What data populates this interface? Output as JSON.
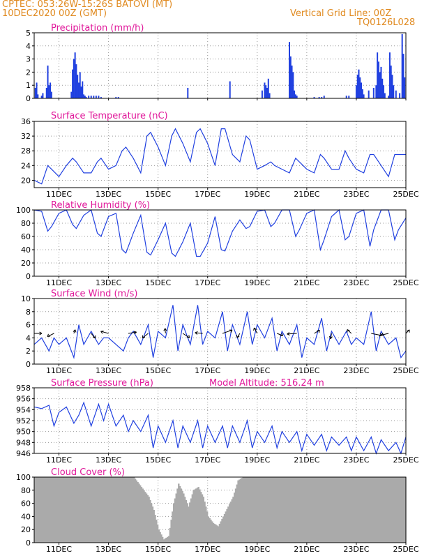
{
  "header": {
    "line1": "CPTEC:   053:26W-15:26S   BATOVI (MT)",
    "line2": "10DEC2020 00Z (GMT)",
    "grid_note": "Vertical Grid Line: 00Z",
    "code": "TQ0126L028",
    "model_altitude": "Model Altitude: 516.24 m"
  },
  "colors": {
    "header": "#e08a20",
    "title": "#e0189a",
    "series": "#2040e0",
    "cloud": "#aaaaaa",
    "wind_arrow": "#000000"
  },
  "x_axis": {
    "ticks": [
      "11DEC",
      "13DEC",
      "15DEC",
      "17DEC",
      "19DEC",
      "21DEC",
      "23DEC",
      "25DEC"
    ],
    "range_days": [
      0,
      15
    ],
    "tick_days": [
      1,
      3,
      5,
      7,
      9,
      11,
      13,
      15
    ]
  },
  "chart_data": [
    {
      "type": "bar",
      "title": "Precipitation (mm/h)",
      "ylim": [
        0,
        5
      ],
      "yticks": [
        0,
        1,
        2,
        3,
        4,
        5
      ],
      "x_unit": "days since 10DEC2020 00Z",
      "x": [
        0.05,
        0.1,
        0.15,
        0.3,
        0.35,
        0.5,
        0.55,
        0.6,
        0.65,
        0.7,
        1.5,
        1.55,
        1.6,
        1.65,
        1.7,
        1.75,
        1.8,
        1.85,
        1.9,
        1.95,
        2.0,
        2.05,
        2.1,
        2.2,
        2.3,
        2.4,
        2.5,
        2.6,
        2.7,
        3.3,
        3.4,
        6.2,
        7.9,
        9.2,
        9.3,
        9.35,
        9.4,
        9.45,
        9.5,
        10.3,
        10.35,
        10.4,
        10.45,
        10.5,
        10.55,
        10.6,
        11.3,
        11.5,
        11.6,
        11.7,
        12.6,
        12.7,
        13.0,
        13.05,
        13.1,
        13.15,
        13.2,
        13.25,
        13.3,
        13.5,
        13.7,
        13.8,
        13.85,
        13.9,
        13.95,
        14.0,
        14.05,
        14.1,
        14.15,
        14.3,
        14.35,
        14.4,
        14.45,
        14.5,
        14.6,
        14.75,
        14.85,
        14.9,
        14.95
      ],
      "values": [
        0.8,
        1.2,
        0.3,
        0.2,
        0.4,
        0.8,
        2.5,
        1.0,
        1.2,
        0.5,
        0.5,
        2.2,
        3.0,
        3.5,
        2.6,
        1.8,
        1.2,
        2.0,
        0.9,
        1.3,
        0.3,
        0.2,
        0.1,
        0.2,
        0.2,
        0.2,
        0.2,
        0.2,
        0.1,
        0.1,
        0.1,
        0.8,
        1.3,
        0.6,
        1.2,
        1.0,
        0.8,
        1.5,
        0.4,
        4.3,
        3.2,
        2.5,
        2.0,
        0.6,
        0.3,
        0.2,
        0.1,
        0.1,
        0.1,
        0.2,
        0.2,
        0.2,
        1.0,
        1.8,
        2.2,
        1.6,
        1.2,
        0.7,
        0.3,
        0.6,
        0.8,
        1.0,
        3.5,
        2.8,
        2.0,
        2.4,
        1.5,
        1.0,
        0.4,
        0.2,
        3.5,
        2.5,
        1.8,
        1.0,
        0.6,
        0.4,
        4.9,
        3.4,
        1.6
      ]
    },
    {
      "type": "line",
      "title": "Surface Temperature (nC)",
      "ylim": [
        18,
        36
      ],
      "yticks": [
        20,
        24,
        28,
        32,
        36
      ],
      "x_unit": "days since 10DEC2020 00Z",
      "x": [
        0,
        0.3,
        0.55,
        0.7,
        1.0,
        1.3,
        1.55,
        1.7,
        2.0,
        2.3,
        2.55,
        2.7,
        3.0,
        3.3,
        3.55,
        3.7,
        4.0,
        4.3,
        4.55,
        4.7,
        5.0,
        5.3,
        5.55,
        5.7,
        6.0,
        6.3,
        6.55,
        6.7,
        7.0,
        7.3,
        7.55,
        7.7,
        8.0,
        8.3,
        8.55,
        8.7,
        9.0,
        9.3,
        9.55,
        9.7,
        10.0,
        10.3,
        10.55,
        10.7,
        11.0,
        11.3,
        11.55,
        11.7,
        12.0,
        12.3,
        12.55,
        12.7,
        13.0,
        13.3,
        13.55,
        13.7,
        14.0,
        14.3,
        14.55,
        14.7,
        15.0
      ],
      "values": [
        20,
        19,
        24,
        23,
        21,
        24,
        26,
        25,
        22,
        22,
        25,
        26,
        23,
        24,
        28,
        29,
        26,
        22,
        32,
        33,
        29,
        24,
        32,
        34,
        30,
        25,
        33,
        34,
        30,
        24,
        34,
        34,
        27,
        25,
        32,
        31,
        23,
        24,
        25,
        24,
        23,
        22,
        26,
        25,
        23,
        22,
        27,
        26,
        23,
        23,
        28,
        26,
        23,
        22,
        27,
        27,
        24,
        21,
        27,
        27,
        27
      ]
    },
    {
      "type": "line",
      "title": "Relative Humidity (%)",
      "ylim": [
        0,
        100
      ],
      "yticks": [
        0,
        20,
        40,
        60,
        80,
        100
      ],
      "x_unit": "days since 10DEC2020 00Z",
      "x": [
        0,
        0.3,
        0.55,
        0.7,
        1.0,
        1.3,
        1.55,
        1.7,
        2.0,
        2.3,
        2.55,
        2.7,
        3.0,
        3.3,
        3.55,
        3.7,
        4.0,
        4.3,
        4.55,
        4.7,
        5.0,
        5.3,
        5.55,
        5.7,
        6.0,
        6.3,
        6.55,
        6.7,
        7.0,
        7.3,
        7.55,
        7.7,
        8.0,
        8.3,
        8.55,
        8.7,
        9.0,
        9.3,
        9.55,
        9.7,
        10.0,
        10.3,
        10.55,
        10.7,
        11.0,
        11.3,
        11.55,
        11.7,
        12.0,
        12.3,
        12.55,
        12.7,
        13.0,
        13.3,
        13.55,
        13.7,
        14.0,
        14.3,
        14.55,
        14.7,
        15.0
      ],
      "values": [
        100,
        98,
        68,
        75,
        95,
        100,
        78,
        72,
        92,
        100,
        65,
        60,
        90,
        95,
        40,
        35,
        65,
        92,
        36,
        32,
        55,
        80,
        35,
        30,
        52,
        80,
        30,
        30,
        50,
        90,
        40,
        38,
        68,
        85,
        72,
        75,
        98,
        100,
        75,
        80,
        100,
        100,
        60,
        70,
        95,
        100,
        40,
        55,
        90,
        100,
        55,
        60,
        95,
        100,
        45,
        70,
        100,
        100,
        55,
        70,
        88
      ]
    },
    {
      "type": "line",
      "title": "Surface Wind (m/s)",
      "ylim": [
        0,
        10
      ],
      "yticks": [
        0,
        2,
        4,
        6,
        8,
        10
      ],
      "x_unit": "days since 10DEC2020 00Z",
      "x": [
        0,
        0.3,
        0.6,
        0.8,
        1.0,
        1.3,
        1.6,
        1.8,
        2.0,
        2.3,
        2.6,
        2.8,
        3.0,
        3.3,
        3.6,
        3.8,
        4.0,
        4.3,
        4.6,
        4.8,
        5.0,
        5.3,
        5.6,
        5.8,
        6.0,
        6.3,
        6.6,
        6.8,
        7.0,
        7.3,
        7.6,
        7.8,
        8.0,
        8.3,
        8.6,
        8.8,
        9.0,
        9.3,
        9.6,
        9.8,
        10.0,
        10.3,
        10.6,
        10.8,
        11.0,
        11.3,
        11.6,
        11.8,
        12.0,
        12.3,
        12.6,
        12.8,
        13.0,
        13.3,
        13.6,
        13.8,
        14.0,
        14.3,
        14.6,
        14.8,
        15.0
      ],
      "values": [
        3,
        4,
        2,
        4,
        3,
        4,
        1,
        6,
        3,
        5,
        3,
        4,
        4,
        3,
        2,
        4,
        5,
        3,
        6,
        1,
        5,
        4,
        9,
        2,
        6,
        3,
        9,
        3,
        5,
        4,
        8,
        2,
        6,
        3,
        8,
        3,
        6,
        4,
        7,
        2,
        5,
        3,
        6,
        1,
        4,
        3,
        7,
        2,
        5,
        3,
        5,
        3,
        4,
        3,
        8,
        2,
        5,
        3,
        4,
        1,
        2
      ]
    },
    {
      "type": "line",
      "title": "Surface Pressure (hPa)",
      "ylim": [
        946,
        958
      ],
      "yticks": [
        946,
        948,
        950,
        952,
        954,
        956,
        958
      ],
      "x_unit": "days since 10DEC2020 00Z",
      "x": [
        0,
        0.3,
        0.6,
        0.8,
        1.0,
        1.3,
        1.6,
        1.8,
        2.0,
        2.3,
        2.6,
        2.8,
        3.0,
        3.3,
        3.6,
        3.8,
        4.0,
        4.3,
        4.6,
        4.8,
        5.0,
        5.3,
        5.6,
        5.8,
        6.0,
        6.3,
        6.6,
        6.8,
        7.0,
        7.3,
        7.6,
        7.8,
        8.0,
        8.3,
        8.6,
        8.8,
        9.0,
        9.3,
        9.6,
        9.8,
        10.0,
        10.3,
        10.6,
        10.8,
        11.0,
        11.3,
        11.6,
        11.8,
        12.0,
        12.3,
        12.6,
        12.8,
        13.0,
        13.3,
        13.6,
        13.8,
        14.0,
        14.3,
        14.6,
        14.8,
        15.0
      ],
      "values": [
        954.5,
        954.2,
        954.8,
        951,
        953.5,
        954.5,
        951.5,
        953,
        955.3,
        951,
        955,
        952,
        955,
        951,
        953,
        950,
        952,
        950,
        953,
        947,
        951,
        948,
        952,
        947,
        951,
        948,
        952,
        947,
        951,
        948,
        951,
        947,
        951,
        948,
        952,
        947,
        950,
        948,
        951,
        947,
        950,
        948,
        950,
        946.5,
        949.5,
        947.5,
        949.5,
        946.5,
        949,
        947.5,
        949,
        946.5,
        949,
        946.5,
        949,
        946,
        948.5,
        946.5,
        948,
        946,
        949
      ]
    },
    {
      "type": "area",
      "title": "Cloud Cover (%)",
      "ylim": [
        0,
        100
      ],
      "yticks": [
        0,
        20,
        40,
        60,
        80,
        100
      ],
      "x_unit": "days since 10DEC2020 00Z",
      "x": [
        0,
        0.5,
        1.0,
        1.5,
        2.0,
        2.5,
        3.0,
        3.5,
        4.0,
        4.2,
        4.4,
        4.6,
        4.8,
        5.0,
        5.2,
        5.4,
        5.6,
        5.8,
        6.0,
        6.2,
        6.4,
        6.6,
        6.8,
        7.0,
        7.2,
        7.4,
        7.6,
        7.8,
        8.0,
        8.2,
        8.4,
        8.6,
        8.8,
        9.0,
        10.0,
        11.0,
        12.0,
        13.0,
        14.0,
        15.0
      ],
      "values": [
        100,
        100,
        100,
        100,
        100,
        100,
        100,
        100,
        100,
        90,
        80,
        70,
        50,
        20,
        5,
        10,
        60,
        90,
        75,
        55,
        80,
        85,
        70,
        40,
        30,
        25,
        40,
        55,
        70,
        95,
        100,
        100,
        100,
        100,
        100,
        100,
        100,
        100,
        100,
        100
      ]
    }
  ]
}
